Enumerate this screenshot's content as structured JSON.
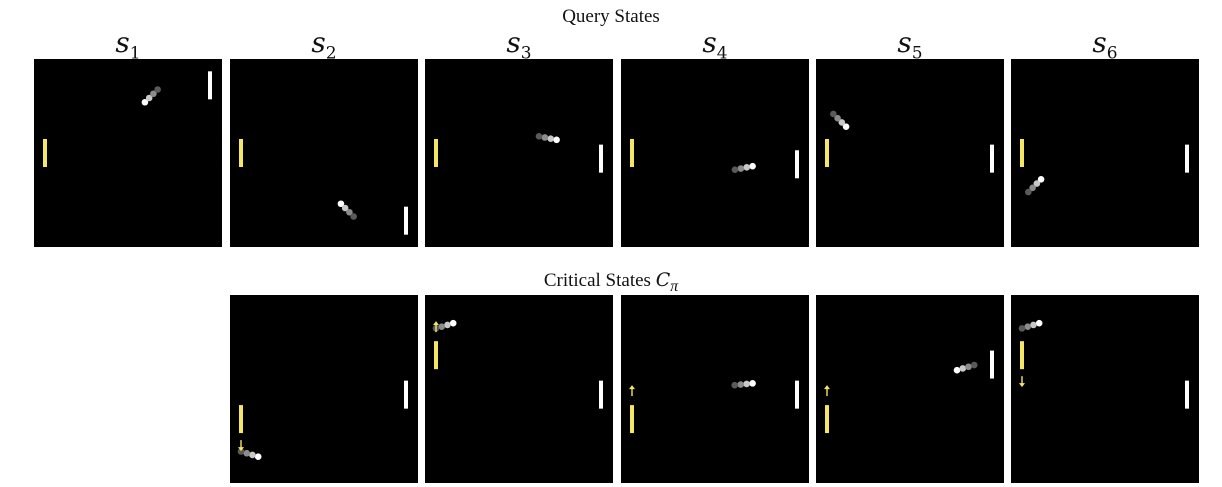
{
  "headings": {
    "query": "Query States",
    "critical_prefix": "Critical States ",
    "critical_symbol": "C",
    "critical_subscript": "π"
  },
  "columns": [
    {
      "letter": "s",
      "index": "1"
    },
    {
      "letter": "s",
      "index": "2"
    },
    {
      "letter": "s",
      "index": "3"
    },
    {
      "letter": "s",
      "index": "4"
    },
    {
      "letter": "s",
      "index": "5"
    },
    {
      "letter": "s",
      "index": "6"
    }
  ],
  "colors": {
    "background": "#000000",
    "agent_paddle": "#f5e663",
    "opponent_paddle": "#ffffff",
    "arrow": "#f5e663",
    "ball_trail": [
      "#ffffff",
      "#c8c8c8",
      "#8c8c8c",
      "#5a5a5a"
    ]
  },
  "query_states": [
    {
      "name": "s1",
      "agent_paddle_y": 0.5,
      "opponent_paddle_y": 0.14,
      "ball_head": [
        0.59,
        0.23
      ],
      "ball_dir": [
        -1,
        1
      ]
    },
    {
      "name": "s2",
      "agent_paddle_y": 0.5,
      "opponent_paddle_y": 0.86,
      "ball_head": [
        0.59,
        0.77
      ],
      "ball_dir": [
        -1,
        -1
      ]
    },
    {
      "name": "s3",
      "agent_paddle_y": 0.5,
      "opponent_paddle_y": 0.53,
      "ball_head": [
        0.7,
        0.43
      ],
      "ball_dir": [
        1,
        0.2
      ]
    },
    {
      "name": "s4",
      "agent_paddle_y": 0.5,
      "opponent_paddle_y": 0.56,
      "ball_head": [
        0.7,
        0.57
      ],
      "ball_dir": [
        1,
        -0.2
      ]
    },
    {
      "name": "s5",
      "agent_paddle_y": 0.5,
      "opponent_paddle_y": 0.53,
      "ball_head": [
        0.16,
        0.36
      ],
      "ball_dir": [
        1,
        1
      ]
    },
    {
      "name": "s6",
      "agent_paddle_y": 0.5,
      "opponent_paddle_y": 0.53,
      "ball_head": [
        0.16,
        0.64
      ],
      "ball_dir": [
        1,
        -1
      ]
    }
  ],
  "critical_states": [
    {
      "column": 2,
      "agent_paddle_y": 0.66,
      "opponent_paddle_y": 0.53,
      "ball_head": [
        0.15,
        0.86
      ],
      "ball_dir": [
        1,
        0.3
      ],
      "arrow": "down"
    },
    {
      "column": 3,
      "agent_paddle_y": 0.32,
      "opponent_paddle_y": 0.53,
      "ball_head": [
        0.15,
        0.15
      ],
      "ball_dir": [
        1,
        -0.3
      ],
      "arrow": "up"
    },
    {
      "column": 4,
      "agent_paddle_y": 0.66,
      "opponent_paddle_y": 0.53,
      "ball_head": [
        0.7,
        0.47
      ],
      "ball_dir": [
        1,
        -0.1
      ],
      "arrow": "up"
    },
    {
      "column": 5,
      "agent_paddle_y": 0.66,
      "opponent_paddle_y": 0.37,
      "ball_head": [
        0.75,
        0.4
      ],
      "ball_dir": [
        -1,
        0.3
      ],
      "arrow": "up"
    },
    {
      "column": 6,
      "agent_paddle_y": 0.32,
      "opponent_paddle_y": 0.53,
      "ball_head": [
        0.15,
        0.15
      ],
      "ball_dir": [
        1,
        -0.3
      ],
      "arrow": "down"
    }
  ]
}
